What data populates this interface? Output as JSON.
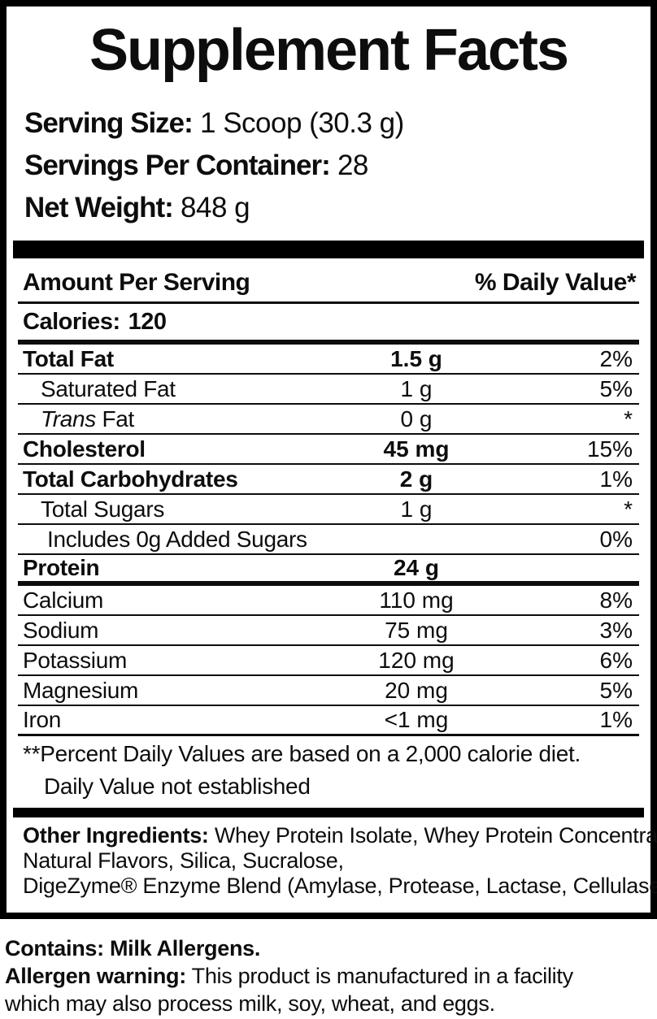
{
  "title": "Supplement Facts",
  "serving_info": {
    "serving_size_label": "Serving Size:",
    "serving_size_value": " 1 Scoop (30.3 g)",
    "servings_per_container_label": "Servings Per Container:",
    "servings_per_container_value": " 28",
    "net_weight_label": "Net Weight:",
    "net_weight_value": " 848 g"
  },
  "table": {
    "header": {
      "amount_per_serving": "Amount Per Serving",
      "daily_value": "% Daily Value*"
    },
    "calories_label": "Calories:",
    "calories_value": "120",
    "rows": [
      {
        "name": "Total Fat",
        "amount": "1.5 g",
        "dv": "2%"
      },
      {
        "name": "Saturated Fat",
        "amount": "1 g",
        "dv": "5%"
      },
      {
        "name_italic": "Trans",
        "name": " Fat",
        "amount": "0 g",
        "dv": "*"
      },
      {
        "name": "Cholesterol",
        "amount": "45 mg",
        "dv": "15%"
      },
      {
        "name": "Total Carbohydrates",
        "amount": "2 g",
        "dv": "1%"
      },
      {
        "name": "Total Sugars",
        "amount": "1 g",
        "dv": "*"
      },
      {
        "name": "Includes 0g Added Sugars",
        "amount": "",
        "dv": "0%"
      },
      {
        "name": "Protein",
        "amount": "24 g",
        "dv": ""
      },
      {
        "name": "Calcium",
        "amount": "110 mg",
        "dv": "8%"
      },
      {
        "name": "Sodium",
        "amount": "75 mg",
        "dv": "3%"
      },
      {
        "name": "Potassium",
        "amount": "120 mg",
        "dv": "6%"
      },
      {
        "name": "Magnesium",
        "amount": "20 mg",
        "dv": "5%"
      },
      {
        "name": "Iron",
        "amount": "<1 mg",
        "dv": "1%"
      }
    ],
    "footnotes": [
      "**Percent Daily Values are based on a 2,000 calorie diet.",
      "Daily Value not established"
    ]
  },
  "other_ingredients": {
    "label": "Other Ingredients:",
    "line1": " Whey Protein Isolate, Whey Protein Concentrate,",
    "line2": "Natural Flavors, Silica, Sucralose,",
    "line3": "DigeZyme® Enzyme Blend (Amylase, Protease, Lactase, Cellulase, Lipase)."
  },
  "allergen": {
    "contains": "Contains: Milk Allergens.",
    "warning_label": "Allergen warning:",
    "warning_line1": " This product is manufactured in a facility",
    "warning_line2": "which may also process milk, soy, wheat, and eggs."
  },
  "colors": {
    "text": "#0d0d0d",
    "background": "#ffffff",
    "border": "#000000"
  }
}
